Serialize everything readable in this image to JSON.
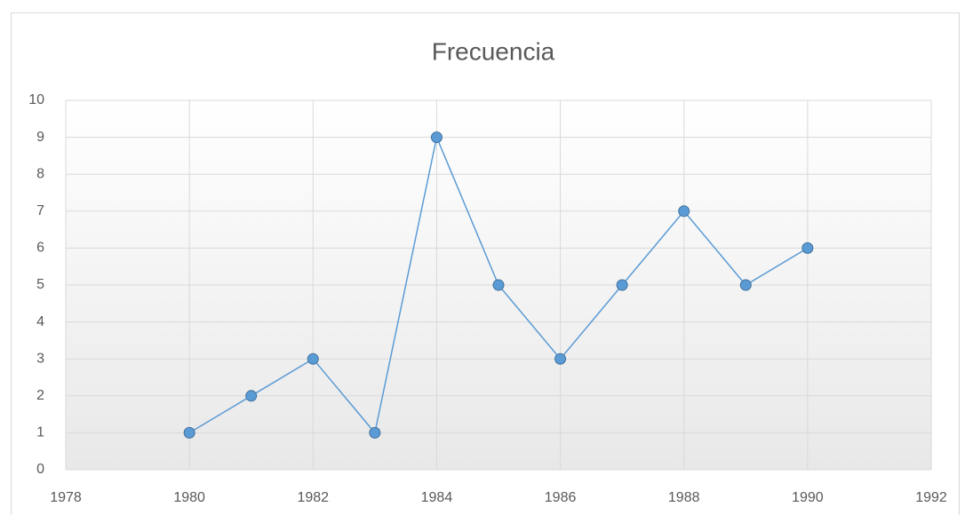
{
  "chart_data": {
    "type": "scatter",
    "title": "Frecuencia",
    "x": [
      1980,
      1981,
      1982,
      1983,
      1984,
      1985,
      1986,
      1987,
      1988,
      1989,
      1990
    ],
    "values": [
      1,
      2,
      3,
      1,
      9,
      5,
      3,
      5,
      7,
      5,
      6
    ],
    "color": "#5b9bd5",
    "lines": true,
    "xlim": [
      1978,
      1992
    ],
    "xticks": [
      1978,
      1980,
      1982,
      1984,
      1986,
      1988,
      1990,
      1992
    ],
    "ylim": [
      0,
      10
    ],
    "yticks": [
      0,
      1,
      2,
      3,
      4,
      5,
      6,
      7,
      8,
      9,
      10
    ],
    "grid": true
  }
}
